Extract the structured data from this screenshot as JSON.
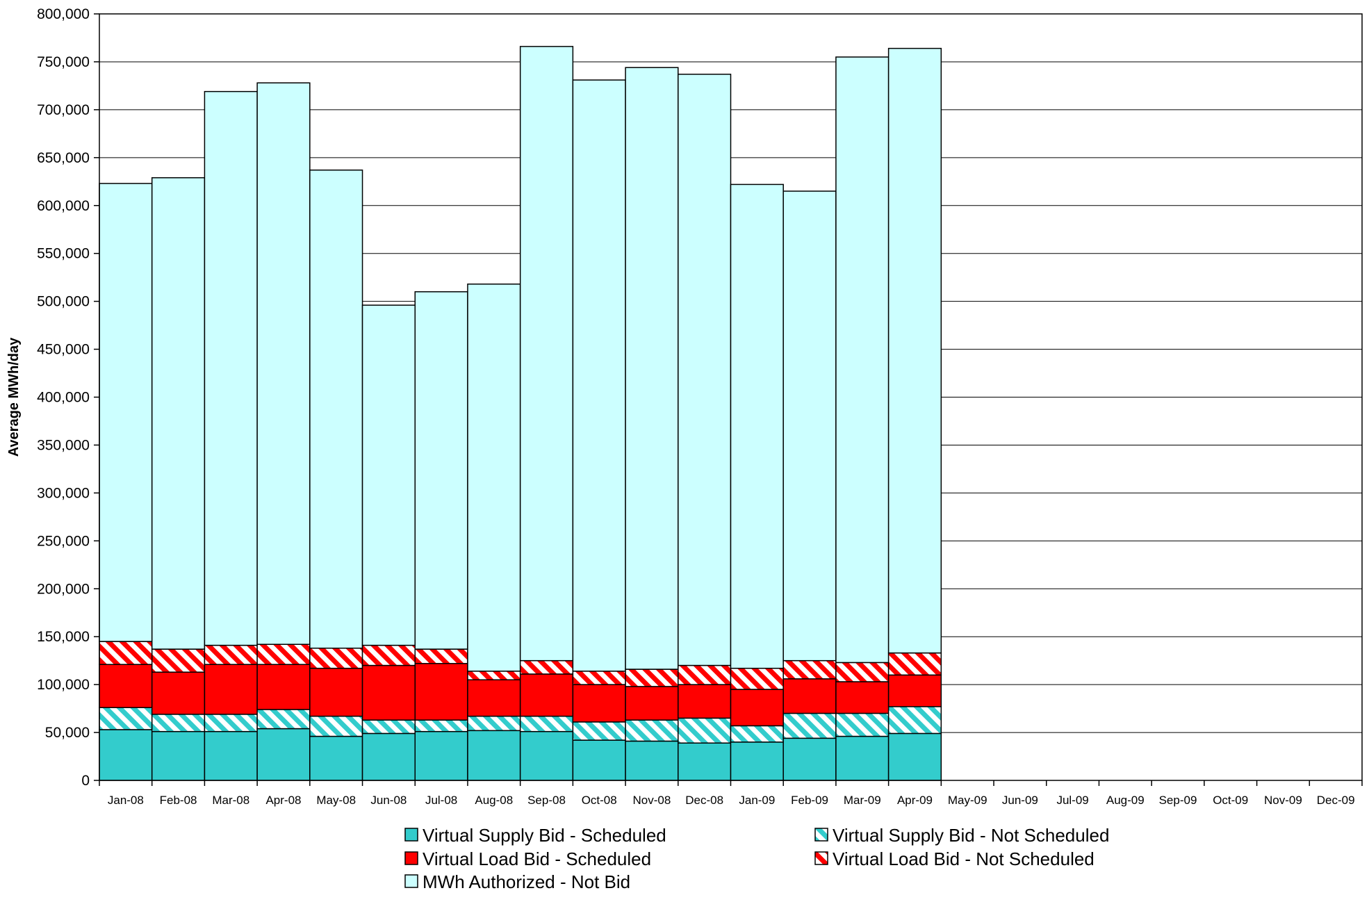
{
  "chart_data": {
    "type": "bar",
    "stacked": true,
    "title": "",
    "xlabel": "",
    "ylabel": "Average MWh/day",
    "ylim": [
      0,
      800000
    ],
    "ytick_step": 50000,
    "ytick_labels": [
      "0",
      "50,000",
      "100,000",
      "150,000",
      "200,000",
      "250,000",
      "300,000",
      "350,000",
      "400,000",
      "450,000",
      "500,000",
      "550,000",
      "600,000",
      "650,000",
      "700,000",
      "750,000",
      "800,000"
    ],
    "grid": true,
    "legend_position": "bottom",
    "categories": [
      "Jan-08",
      "Feb-08",
      "Mar-08",
      "Apr-08",
      "May-08",
      "Jun-08",
      "Jul-08",
      "Aug-08",
      "Sep-08",
      "Oct-08",
      "Nov-08",
      "Dec-08",
      "Jan-09",
      "Feb-09",
      "Mar-09",
      "Apr-09",
      "May-09",
      "Jun-09",
      "Jul-09",
      "Aug-09",
      "Sep-09",
      "Oct-09",
      "Nov-09",
      "Dec-09"
    ],
    "series": [
      {
        "name": "Virtual Supply Bid - Scheduled",
        "color": "#33cccc",
        "pattern": "solid",
        "values": [
          53000,
          51000,
          51000,
          54000,
          46000,
          49000,
          51000,
          52000,
          51000,
          42000,
          41000,
          39000,
          40000,
          44000,
          46000,
          49000,
          null,
          null,
          null,
          null,
          null,
          null,
          null,
          null
        ]
      },
      {
        "name": "Virtual Supply Bid - Not Scheduled",
        "color": "#33cccc",
        "pattern": "hatch",
        "values": [
          23000,
          18000,
          18000,
          20000,
          21000,
          14000,
          12000,
          15000,
          16000,
          19000,
          22000,
          26000,
          17000,
          26000,
          24000,
          28000,
          null,
          null,
          null,
          null,
          null,
          null,
          null,
          null
        ]
      },
      {
        "name": "Virtual Load    Bid - Scheduled",
        "color": "#ff0000",
        "pattern": "solid",
        "values": [
          45000,
          44000,
          52000,
          47000,
          50000,
          57000,
          59000,
          38000,
          44000,
          39000,
          35000,
          35000,
          38000,
          36000,
          33000,
          33000,
          null,
          null,
          null,
          null,
          null,
          null,
          null,
          null
        ]
      },
      {
        "name": "Virtual Load    Bid - Not Scheduled",
        "color": "#ff0000",
        "pattern": "hatch",
        "values": [
          24000,
          24000,
          20000,
          21000,
          21000,
          21000,
          15000,
          9000,
          14000,
          14000,
          18000,
          20000,
          22000,
          19000,
          20000,
          23000,
          null,
          null,
          null,
          null,
          null,
          null,
          null,
          null
        ]
      },
      {
        "name": "MWh Authorized    - Not Bid",
        "color": "#ccffff",
        "pattern": "solid",
        "values": [
          478000,
          492000,
          578000,
          586000,
          499000,
          355000,
          373000,
          404000,
          641000,
          617000,
          628000,
          617000,
          505000,
          490000,
          632000,
          631000,
          null,
          null,
          null,
          null,
          null,
          null,
          null,
          null
        ]
      }
    ]
  }
}
